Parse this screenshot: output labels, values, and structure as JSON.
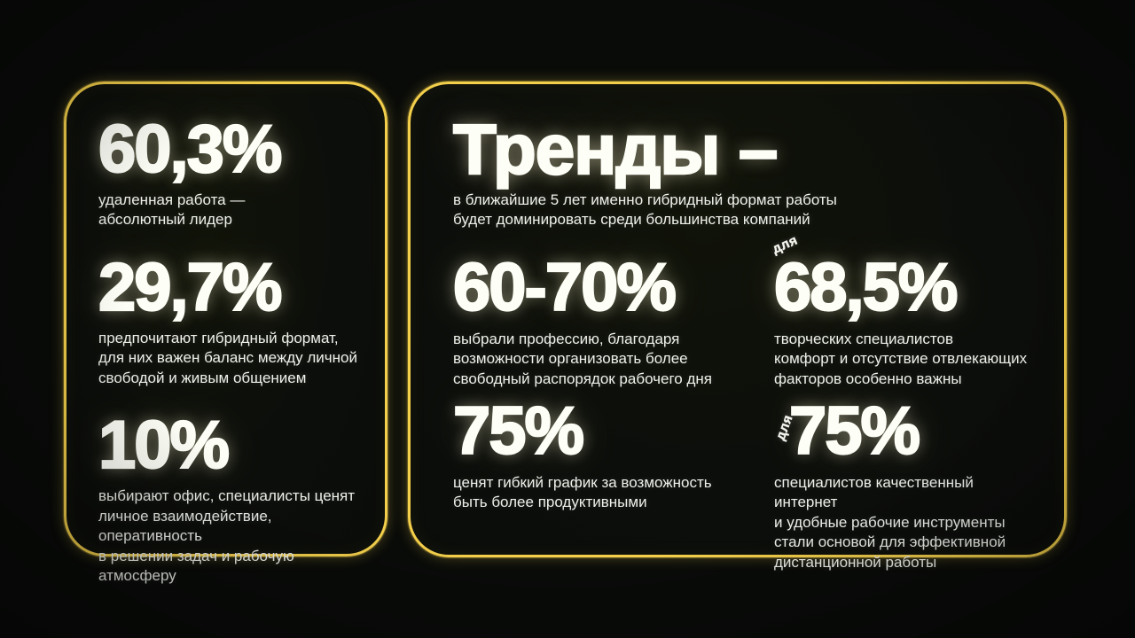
{
  "page": {
    "background_color": "#090b09",
    "accent_color": "#f3cf4b",
    "text_color": "#fdfef6"
  },
  "left_panel": {
    "stats": [
      {
        "value": "60,3%",
        "caption": "удаленная работа —\nабсолютный лидер"
      },
      {
        "value": "29,7%",
        "caption": "предпочитают гибридный формат,\nдля них важен баланс между личной\nсвободой и живым общением"
      },
      {
        "value": "10%",
        "caption": "выбирают офис, специалисты ценят\nличное взаимодействие, оперативность\nв решении задач и рабочую атмосферу"
      }
    ]
  },
  "right_panel": {
    "title": "Тренды –",
    "subtitle": "в ближайшие 5 лет именно гибридный формат работы\nбудет доминировать среди большинства компаний",
    "stats": [
      {
        "prefix": "",
        "value": "60-70%",
        "caption": "выбрали профессию, благодаря\nвозможности организовать более\nсвободный распорядок рабочего дня"
      },
      {
        "prefix": "для",
        "value": "68,5%",
        "caption": "творческих специалистов\nкомфорт и отсутствие отвлекающих\nфакторов особенно важны"
      },
      {
        "prefix": "",
        "value": "75%",
        "caption": "ценят гибкий график за возможность\nбыть более продуктивными"
      },
      {
        "prefix": "для",
        "value": "75%",
        "caption": "специалистов качественный интернет\nи удобные рабочие инструменты\nстали основой для эффективной\nдистанционной работы"
      }
    ]
  }
}
